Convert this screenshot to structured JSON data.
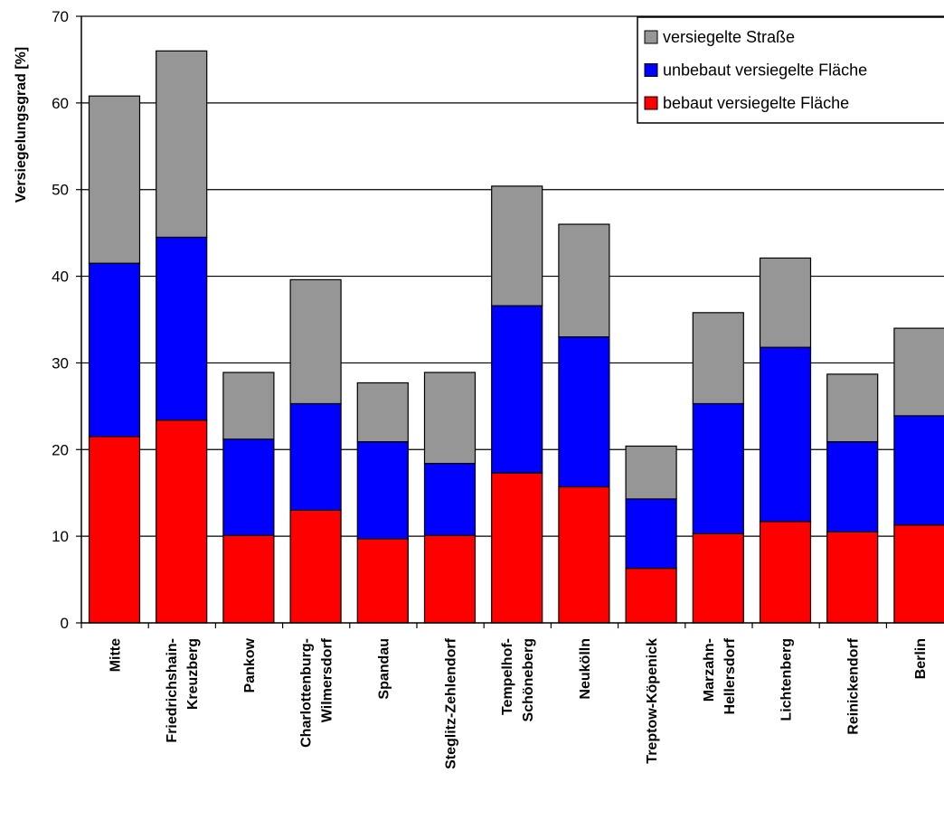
{
  "chart_data": {
    "type": "bar",
    "stacked": true,
    "title": "",
    "xlabel": "",
    "ylabel": "Versiegelungsgrad [%]",
    "ylim": [
      0,
      70
    ],
    "yticks": [
      0,
      10,
      20,
      30,
      40,
      50,
      60,
      70
    ],
    "grid": true,
    "legend_position": "top-right",
    "categories": [
      [
        "Mitte"
      ],
      [
        "Friedrichshain-",
        "Kreuzberg"
      ],
      [
        "Pankow"
      ],
      [
        "Charlottenburg-",
        "Wilmersdorf"
      ],
      [
        "Spandau"
      ],
      [
        "Steglitz-Zehlendorf"
      ],
      [
        "Tempelhof-",
        "Schöneberg"
      ],
      [
        "Neukölln"
      ],
      [
        "Treptow-Köpenick"
      ],
      [
        "Marzahn-",
        "Hellersdorf"
      ],
      [
        "Lichtenberg"
      ],
      [
        "Reinickendorf"
      ],
      [
        "Berlin"
      ]
    ],
    "series": [
      {
        "name": "bebaut versiegelte Fläche",
        "color": "#ff0000",
        "values": [
          21.5,
          23.4,
          10.1,
          13.0,
          9.7,
          10.1,
          17.3,
          15.7,
          6.3,
          10.3,
          11.7,
          10.5,
          11.3
        ]
      },
      {
        "name": "unbebaut versiegelte Fläche",
        "color": "#0000ff",
        "values": [
          20.0,
          21.1,
          11.1,
          12.3,
          11.2,
          8.3,
          19.3,
          17.3,
          8.0,
          15.0,
          20.1,
          10.4,
          12.6
        ]
      },
      {
        "name": "versiegelte Straße",
        "color": "#969696",
        "values": [
          19.3,
          21.5,
          7.7,
          14.3,
          6.8,
          10.5,
          13.8,
          13.0,
          6.1,
          10.5,
          10.3,
          7.8,
          10.1
        ]
      }
    ],
    "legend_order": [
      2,
      1,
      0
    ]
  }
}
